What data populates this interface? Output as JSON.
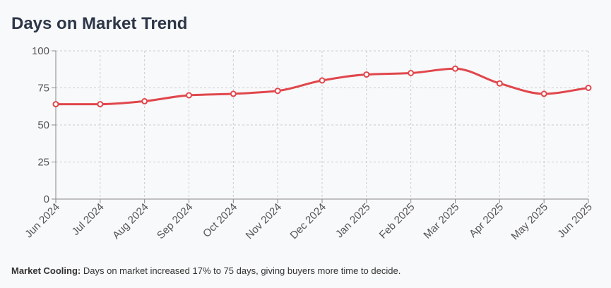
{
  "header": {
    "title": "Days on Market Trend"
  },
  "note": {
    "label": "Market Cooling:",
    "text": "Days on market increased 17% to 75 days, giving buyers more time to decide."
  },
  "chart_data": {
    "type": "line",
    "title": "Days on Market Trend",
    "xlabel": "",
    "ylabel": "",
    "categories": [
      "Jun 2024",
      "Jul 2024",
      "Aug 2024",
      "Sep 2024",
      "Oct 2024",
      "Nov 2024",
      "Dec 2024",
      "Jan 2025",
      "Feb 2025",
      "Mar 2025",
      "Apr 2025",
      "May 2025",
      "Jun 2025"
    ],
    "series": [
      {
        "name": "Days on Market",
        "values": [
          64,
          64,
          66,
          70,
          71,
          73,
          80,
          84,
          85,
          88,
          78,
          71,
          75
        ],
        "color": "#e0474c"
      }
    ],
    "ylim": [
      0,
      100
    ],
    "yticks": [
      0,
      25,
      50,
      75,
      100
    ],
    "grid": true,
    "legend": "none"
  },
  "colors": {
    "line": "#e0474c",
    "grid": "#cccccc",
    "axis": "#888888"
  }
}
